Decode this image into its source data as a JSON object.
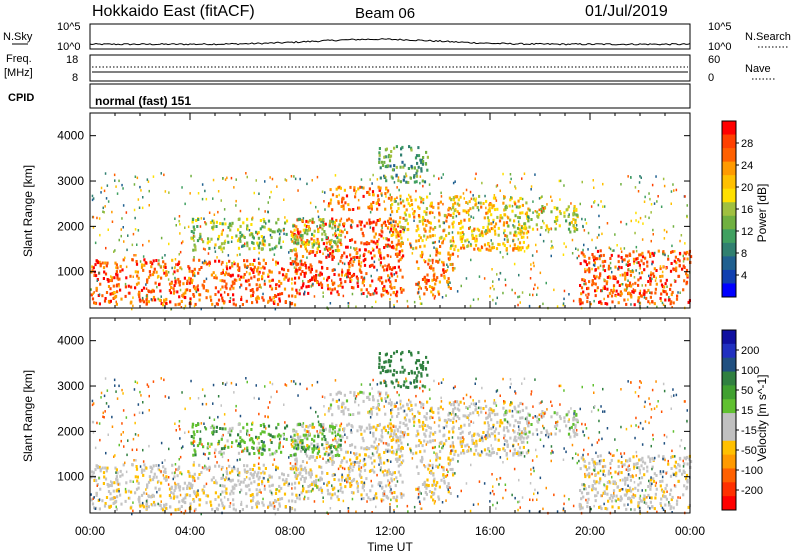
{
  "chart_data": {
    "type": "heatmap",
    "header": {
      "station": "Hokkaido East (fitACF)",
      "beam": "Beam 06",
      "date": "01/Jul/2019"
    },
    "strips": {
      "nsky_label": "N.Sky",
      "nsearch_label": "N.Search",
      "noise_ticks": [
        "10^5",
        "10^0"
      ],
      "freq_label": "Freq.",
      "freq_unit": "[MHz]",
      "freq_ticks": [
        "18",
        "8"
      ],
      "nave_label": "Nave",
      "nave_ticks": [
        "60",
        "0"
      ],
      "cpid_label": "CPID",
      "cpid_value": "normal (fast) 151"
    },
    "panels": [
      {
        "name": "power",
        "ylabel": "Slant Range [km]",
        "yticks": [
          "4000",
          "3000",
          "2000",
          "1000"
        ],
        "colorbar_label": "Power [dB]",
        "colorbar_ticks": [
          "28",
          "24",
          "20",
          "16",
          "12",
          "8",
          "4"
        ],
        "colorbar_colors": [
          "#ff0000",
          "#ff4000",
          "#ff6000",
          "#ff9a00",
          "#ffc000",
          "#ffe000",
          "#a0c040",
          "#70b040",
          "#40a060",
          "#308070",
          "#206090",
          "#1040b0",
          "#0000ff"
        ]
      },
      {
        "name": "velocity",
        "ylabel": "Slant Range [km]",
        "yticks": [
          "4000",
          "3000",
          "2000",
          "1000"
        ],
        "colorbar_label": "Velocity [m s^-1]",
        "colorbar_ticks": [
          "200",
          "100",
          "50",
          "15",
          "-15",
          "-50",
          "-100",
          "-200"
        ],
        "colorbar_colors": [
          "#1010a0",
          "#2030c0",
          "#205080",
          "#308040",
          "#40a030",
          "#60c030",
          "#c0c0c0",
          "#c0c0c0",
          "#ffc000",
          "#ff9a00",
          "#ff6000",
          "#ff3000",
          "#ff0000"
        ]
      }
    ],
    "xticks": [
      "00:00",
      "04:00",
      "08:00",
      "12:00",
      "16:00",
      "20:00",
      "00:00"
    ],
    "xlabel": "Time UT",
    "x_range_hours": [
      0,
      24
    ],
    "y_range_km": [
      200,
      4500
    ],
    "echo_regions": [
      {
        "t0": 0.0,
        "t1": 8.5,
        "r0": 300,
        "r1": 1300,
        "power": 26,
        "velocity": -5
      },
      {
        "t0": 8.0,
        "t1": 12.5,
        "r0": 500,
        "r1": 2200,
        "power": 27,
        "velocity": -5
      },
      {
        "t0": 9.5,
        "t1": 12.0,
        "r0": 2400,
        "r1": 2900,
        "power": 25,
        "velocity": 0
      },
      {
        "t0": 12.0,
        "t1": 17.5,
        "r0": 1500,
        "r1": 2700,
        "power": 20,
        "velocity": -5
      },
      {
        "t0": 13.0,
        "t1": 14.5,
        "r0": 500,
        "r1": 1500,
        "power": 24,
        "velocity": -10
      },
      {
        "t0": 16.5,
        "t1": 19.5,
        "r0": 1900,
        "r1": 2500,
        "power": 16,
        "velocity": 5
      },
      {
        "t0": 19.5,
        "t1": 24.0,
        "r0": 300,
        "r1": 1500,
        "power": 27,
        "velocity": -5
      },
      {
        "t0": 4.0,
        "t1": 10.0,
        "r0": 1500,
        "r1": 2200,
        "power": 14,
        "velocity": 30
      },
      {
        "t0": 11.5,
        "t1": 13.5,
        "r0": 3000,
        "r1": 3800,
        "power": 10,
        "velocity": 60
      }
    ]
  }
}
